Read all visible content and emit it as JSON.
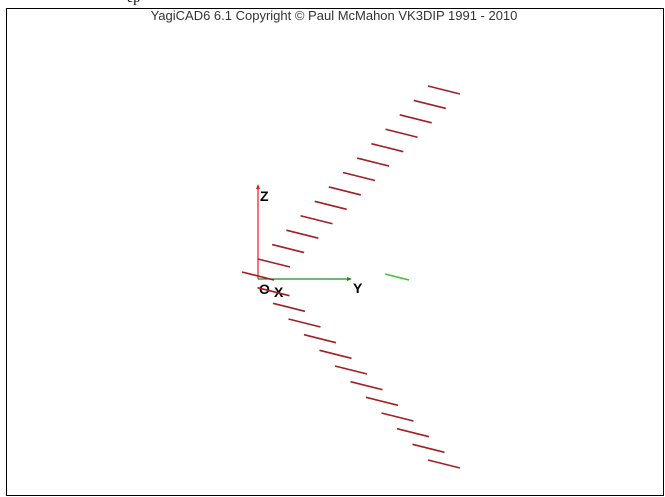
{
  "top_strip_fragment": "ep",
  "window": {
    "title": "YagiCAD6 6.1   Copyright © Paul McMahon VK3DIP 1991 - 2010"
  },
  "axes": {
    "z_label": "Z",
    "y_label": "Y",
    "origin_label": "O",
    "x_label": "X",
    "z_color": "#e8191f",
    "y_color": "#1a8c1a"
  },
  "colors": {
    "element": "#a31f24",
    "driven_element": "#39c639",
    "background": "#ffffff"
  },
  "elements": {
    "upper_count": 13,
    "lower_count": 13,
    "driven_count": 1
  }
}
